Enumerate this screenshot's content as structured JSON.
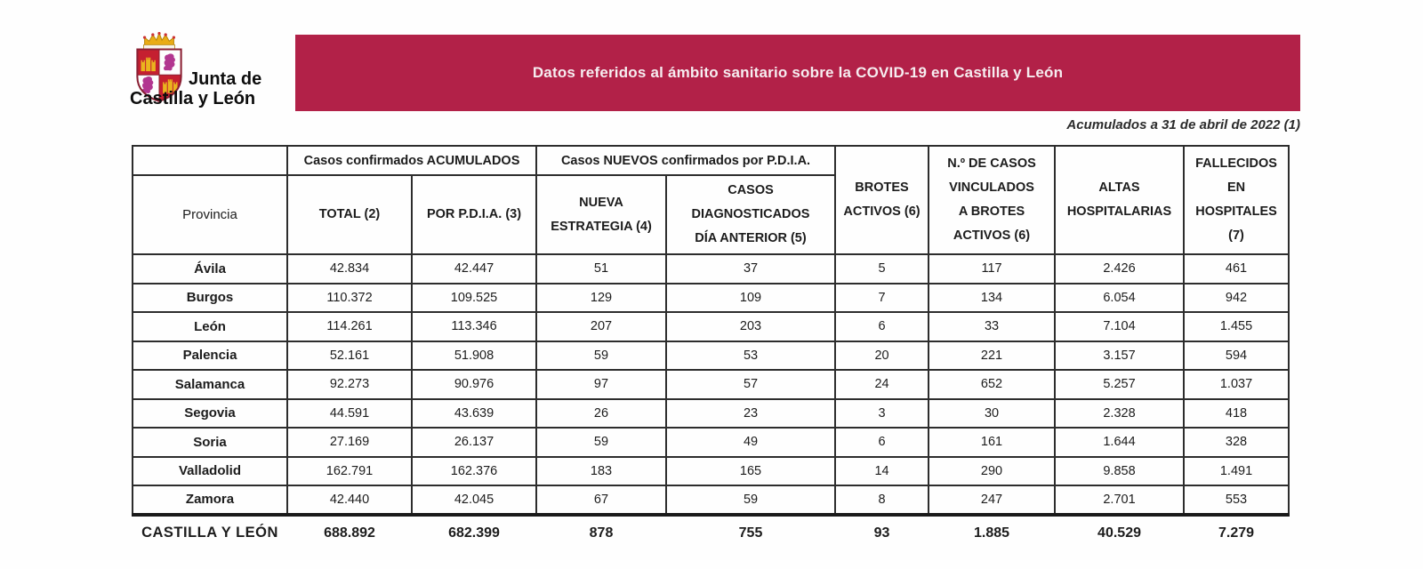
{
  "logo": {
    "line1": "Junta de",
    "line2": "Castilla y León"
  },
  "banner": {
    "title": "Datos referidos al ámbito sanitario sobre la COVID-19 en Castilla y León",
    "bg_color": "#b22148",
    "text_color": "#f6edf0"
  },
  "date_note": "Acumulados a 31 de abril de 2022 (1)",
  "table": {
    "group_headers": [
      {
        "label": "Casos confirmados ACUMULADOS"
      },
      {
        "label": "Casos NUEVOS confirmados por P.D.I.A."
      }
    ],
    "column_headers": [
      "Provincia",
      "TOTAL (2)",
      "POR P.D.I.A. (3)",
      "NUEVA\nESTRATEGIA (4)",
      "CASOS\nDIAGNOSTICADOS\nDÍA ANTERIOR (5)",
      "BROTES\nACTIVOS (6)",
      "N.º DE CASOS\nVINCULADOS\nA BROTES\nACTIVOS (6)",
      "ALTAS\nHOSPITALARIAS",
      "FALLECIDOS\nEN\nHOSPITALES\n(7)"
    ],
    "rows": [
      {
        "provincia": "Ávila",
        "values": [
          "42.834",
          "42.447",
          "51",
          "37",
          "5",
          "117",
          "2.426",
          "461"
        ]
      },
      {
        "provincia": "Burgos",
        "values": [
          "110.372",
          "109.525",
          "129",
          "109",
          "7",
          "134",
          "6.054",
          "942"
        ]
      },
      {
        "provincia": "León",
        "values": [
          "114.261",
          "113.346",
          "207",
          "203",
          "6",
          "33",
          "7.104",
          "1.455"
        ]
      },
      {
        "provincia": "Palencia",
        "values": [
          "52.161",
          "51.908",
          "59",
          "53",
          "20",
          "221",
          "3.157",
          "594"
        ]
      },
      {
        "provincia": "Salamanca",
        "values": [
          "92.273",
          "90.976",
          "97",
          "57",
          "24",
          "652",
          "5.257",
          "1.037"
        ]
      },
      {
        "provincia": "Segovia",
        "values": [
          "44.591",
          "43.639",
          "26",
          "23",
          "3",
          "30",
          "2.328",
          "418"
        ]
      },
      {
        "provincia": "Soria",
        "values": [
          "27.169",
          "26.137",
          "59",
          "49",
          "6",
          "161",
          "1.644",
          "328"
        ]
      },
      {
        "provincia": "Valladolid",
        "values": [
          "162.791",
          "162.376",
          "183",
          "165",
          "14",
          "290",
          "9.858",
          "1.491"
        ]
      },
      {
        "provincia": "Zamora",
        "values": [
          "42.440",
          "42.045",
          "67",
          "59",
          "8",
          "247",
          "2.701",
          "553"
        ]
      }
    ],
    "totals": {
      "provincia": "CASTILLA Y LEÓN",
      "values": [
        "688.892",
        "682.399",
        "878",
        "755",
        "93",
        "1.885",
        "40.529",
        "7.279"
      ]
    }
  }
}
